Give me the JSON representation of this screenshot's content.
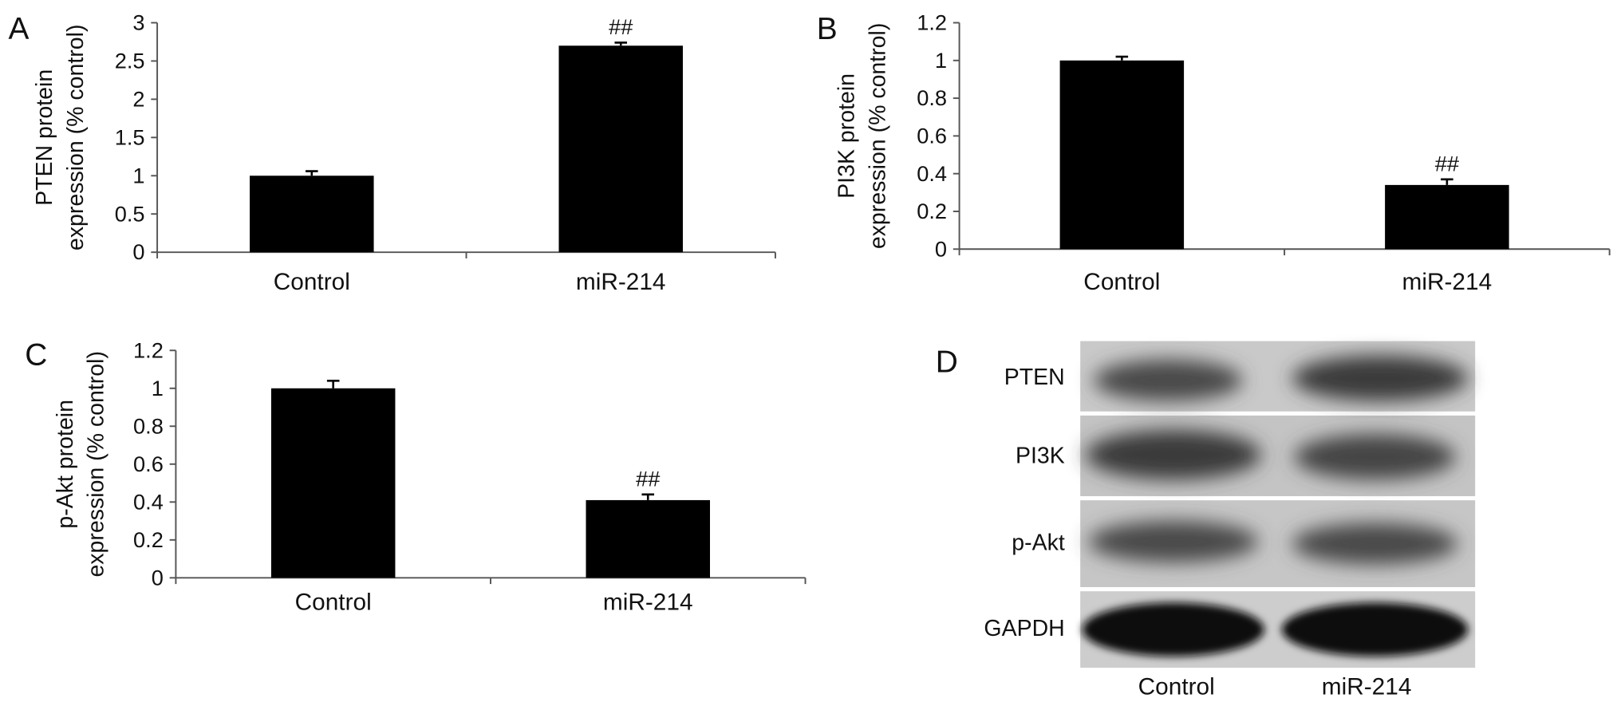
{
  "chart_data": [
    {
      "type": "bar",
      "panel": "A",
      "ylabel": [
        "PTEN protein",
        "expression (% control)"
      ],
      "categories": [
        "Control",
        "miR-214"
      ],
      "values": [
        1.0,
        2.7
      ],
      "errors": [
        0.06,
        0.04
      ],
      "significance": [
        null,
        "##"
      ],
      "color": "#000000",
      "ylim": [
        0,
        3
      ],
      "yticks": [
        0,
        0.5,
        1,
        1.5,
        2,
        2.5,
        3
      ]
    },
    {
      "type": "bar",
      "panel": "B",
      "ylabel": [
        "PI3K protein",
        "expression (% control)"
      ],
      "categories": [
        "Control",
        "miR-214"
      ],
      "values": [
        1.0,
        0.34
      ],
      "errors": [
        0.02,
        0.03
      ],
      "significance": [
        null,
        "##"
      ],
      "color": "#000000",
      "ylim": [
        0,
        1.2
      ],
      "yticks": [
        0,
        0.2,
        0.4,
        0.6,
        0.8,
        1,
        1.2
      ]
    },
    {
      "type": "bar",
      "panel": "C",
      "ylabel": [
        "p-Akt protein",
        "expression (% control)"
      ],
      "categories": [
        "Control",
        "miR-214"
      ],
      "values": [
        1.0,
        0.41
      ],
      "errors": [
        0.04,
        0.03
      ],
      "significance": [
        null,
        "##"
      ],
      "color": "#000000",
      "ylim": [
        0,
        1.2
      ],
      "yticks": [
        0,
        0.2,
        0.4,
        0.6,
        0.8,
        1,
        1.2
      ]
    }
  ],
  "blot": {
    "panel": "D",
    "rows": [
      "PTEN",
      "PI3K",
      "p-Akt",
      "GAPDH"
    ],
    "columns": [
      "Control",
      "miR-214"
    ]
  }
}
